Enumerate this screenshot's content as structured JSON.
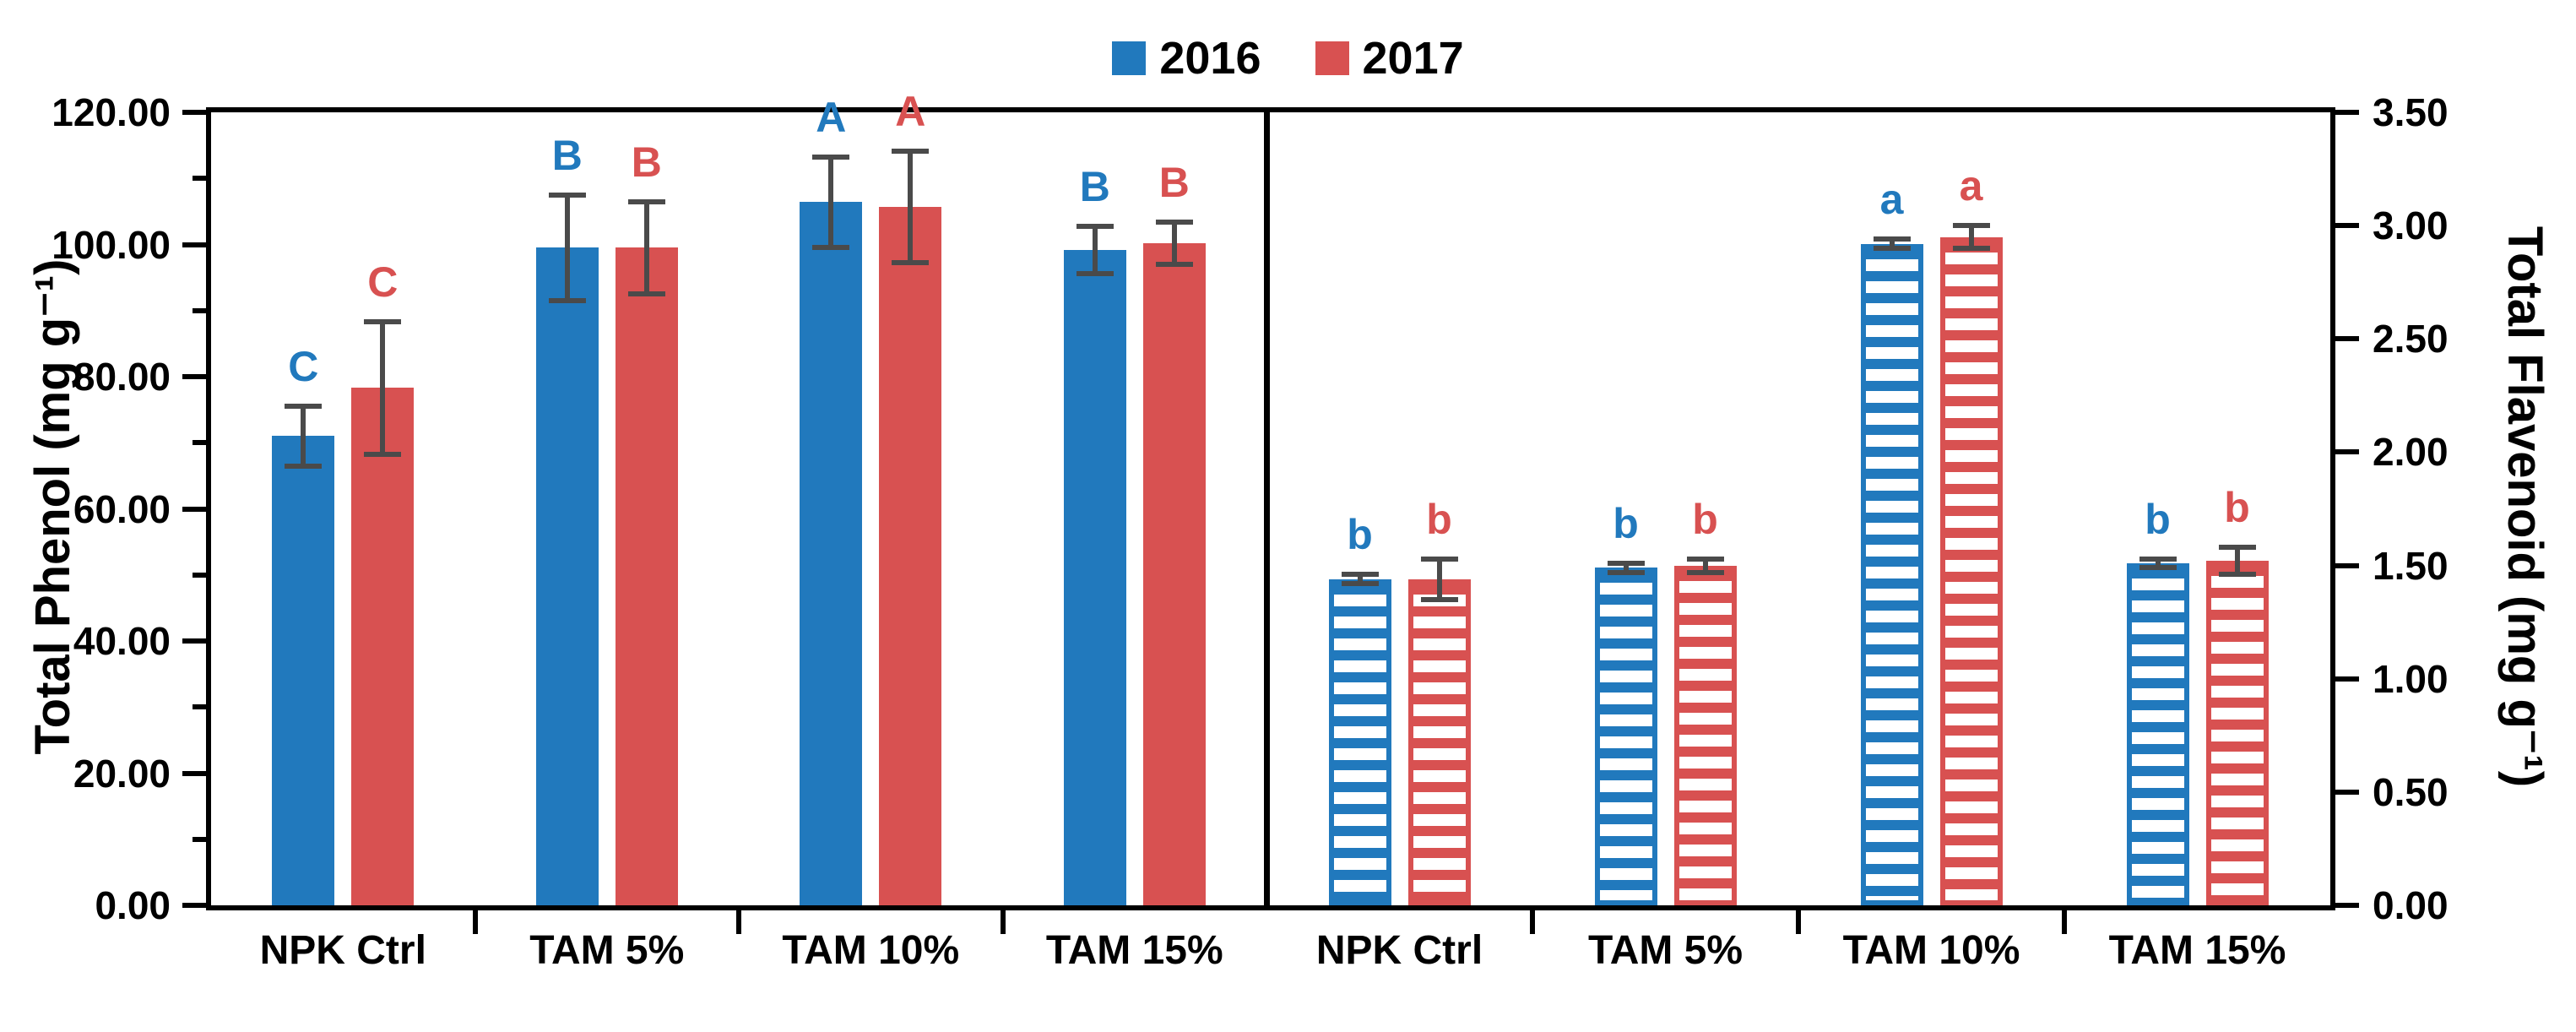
{
  "legend": {
    "items": [
      {
        "label": "2016",
        "color": "#2179BD"
      },
      {
        "label": "2017",
        "color": "#D85151"
      }
    ]
  },
  "colors": {
    "series_2016": "#2179BD",
    "series_2017": "#D85151",
    "error_bar": "#4a4a4a",
    "axis": "#000000",
    "background": "#ffffff"
  },
  "x_categories": [
    "NPK Ctrl",
    "TAM 5%",
    "TAM 10%",
    "TAM 15%"
  ],
  "axes": {
    "left": {
      "title": "Total Phenol (mg g⁻¹)",
      "ylim": [
        0,
        120
      ],
      "minor_step": 10,
      "ticks": [
        {
          "value": 0,
          "label": "0.00"
        },
        {
          "value": 20,
          "label": "20.00"
        },
        {
          "value": 40,
          "label": "40.00"
        },
        {
          "value": 60,
          "label": "60.00"
        },
        {
          "value": 80,
          "label": "80.00"
        },
        {
          "value": 100,
          "label": "100.00"
        },
        {
          "value": 120,
          "label": "120.00"
        }
      ]
    },
    "right": {
      "title": "Total Flavenoid (mg g⁻¹)",
      "ylim": [
        0,
        3.5
      ],
      "minor_step": 0,
      "ticks": [
        {
          "value": 0,
          "label": "0.00"
        },
        {
          "value": 0.5,
          "label": "0.50"
        },
        {
          "value": 1,
          "label": "1.00"
        },
        {
          "value": 1.5,
          "label": "1.50"
        },
        {
          "value": 2,
          "label": "2.00"
        },
        {
          "value": 2.5,
          "label": "2.50"
        },
        {
          "value": 3,
          "label": "3.00"
        },
        {
          "value": 3.5,
          "label": "3.50"
        }
      ]
    }
  },
  "chart_data": [
    {
      "type": "bar",
      "panel": "left",
      "ylabel": "Total Phenol (mg g⁻¹)",
      "categories": [
        "NPK Ctrl",
        "TAM 5%",
        "TAM 10%",
        "TAM 15%"
      ],
      "ylim": [
        0,
        120
      ],
      "hatched": false,
      "grid": false,
      "series": [
        {
          "name": "2016",
          "color": "#2179BD",
          "values": [
            71.0,
            99.5,
            106.4,
            99.2
          ],
          "errors": [
            4.5,
            8.0,
            6.8,
            3.6
          ],
          "letters": [
            "C",
            "B",
            "A",
            "B"
          ]
        },
        {
          "name": "2017",
          "color": "#D85151",
          "values": [
            78.3,
            99.5,
            105.7,
            100.2
          ],
          "errors": [
            10.0,
            7.0,
            8.4,
            3.2
          ],
          "letters": [
            "C",
            "B",
            "A",
            "B"
          ]
        }
      ]
    },
    {
      "type": "bar",
      "panel": "right",
      "ylabel": "Total Flavenoid (mg g⁻¹)",
      "categories": [
        "NPK Ctrl",
        "TAM 5%",
        "TAM 10%",
        "TAM 15%"
      ],
      "ylim": [
        0,
        3.5
      ],
      "hatched": true,
      "grid": false,
      "series": [
        {
          "name": "2016",
          "color": "#2179BD",
          "values": [
            1.44,
            1.49,
            2.92,
            1.51
          ],
          "errors": [
            0.02,
            0.02,
            0.02,
            0.02
          ],
          "letters": [
            "b",
            "b",
            "a",
            "b"
          ]
        },
        {
          "name": "2017",
          "color": "#D85151",
          "values": [
            1.44,
            1.5,
            2.95,
            1.52
          ],
          "errors": [
            0.09,
            0.03,
            0.05,
            0.06
          ],
          "letters": [
            "b",
            "b",
            "a",
            "b"
          ]
        }
      ]
    }
  ]
}
